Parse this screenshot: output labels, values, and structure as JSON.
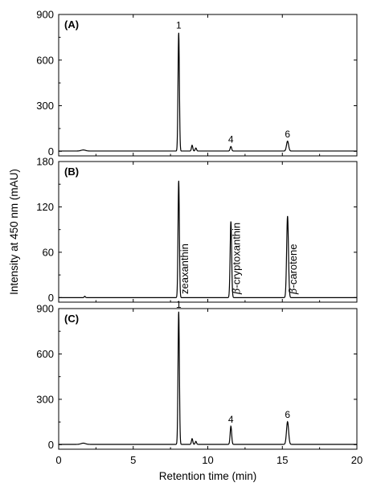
{
  "chart_data": {
    "type": "line",
    "xlabel": "Retention time (min)",
    "ylabel": "Intensity at 450 nm (mAU)",
    "xlim": [
      0,
      20
    ],
    "x_ticks": [
      "0",
      "5",
      "10",
      "15",
      "20"
    ],
    "grid": false,
    "line_color": "#000000",
    "panels": [
      {
        "label": "(A)",
        "ylim": [
          -30,
          900
        ],
        "y_ticks": [
          "0",
          "300",
          "600",
          "900"
        ],
        "baseline": 2,
        "peaks": [
          {
            "x": 1.65,
            "height": 7,
            "width": 0.15
          },
          {
            "x": 8.05,
            "height": 780,
            "width": 0.045
          },
          {
            "x": 8.95,
            "height": 38,
            "width": 0.045
          },
          {
            "x": 9.2,
            "height": 20,
            "width": 0.045
          },
          {
            "x": 11.55,
            "height": 30,
            "width": 0.05
          },
          {
            "x": 15.35,
            "height": 65,
            "width": 0.07
          }
        ],
        "peak_labels": [
          {
            "text": "1",
            "x": 8.05,
            "y": 780
          },
          {
            "text": "4",
            "x": 11.55,
            "y": 30
          },
          {
            "text": "6",
            "x": 15.35,
            "y": 65
          }
        ]
      },
      {
        "label": "(B)",
        "ylim": [
          -6,
          180
        ],
        "y_ticks": [
          "0",
          "60",
          "120",
          "180"
        ],
        "baseline": 0,
        "peaks": [
          {
            "x": 1.75,
            "height": 1.8,
            "width": 0.04
          },
          {
            "x": 8.05,
            "height": 155,
            "width": 0.045
          },
          {
            "x": 11.55,
            "height": 101,
            "width": 0.05
          },
          {
            "x": 15.35,
            "height": 108,
            "width": 0.06
          }
        ],
        "peak_labels": [],
        "compound_labels": [
          {
            "text": "zeaxanthin",
            "x": 8.4
          },
          {
            "text": "β-cryptoxanthin",
            "x": 11.9
          },
          {
            "text": "β-carotene",
            "x": 15.7
          }
        ]
      },
      {
        "label": "(C)",
        "ylim": [
          -30,
          900
        ],
        "y_ticks": [
          "0",
          "300",
          "600",
          "900"
        ],
        "baseline": 2,
        "peaks": [
          {
            "x": 1.65,
            "height": 8,
            "width": 0.15
          },
          {
            "x": 8.05,
            "height": 880,
            "width": 0.045
          },
          {
            "x": 8.95,
            "height": 38,
            "width": 0.045
          },
          {
            "x": 9.2,
            "height": 20,
            "width": 0.045
          },
          {
            "x": 11.55,
            "height": 120,
            "width": 0.05
          },
          {
            "x": 15.35,
            "height": 150,
            "width": 0.07
          }
        ],
        "peak_labels": [
          {
            "text": "1",
            "x": 8.05,
            "y": 880
          },
          {
            "text": "4",
            "x": 11.55,
            "y": 120
          },
          {
            "text": "6",
            "x": 15.35,
            "y": 150
          }
        ]
      }
    ]
  }
}
